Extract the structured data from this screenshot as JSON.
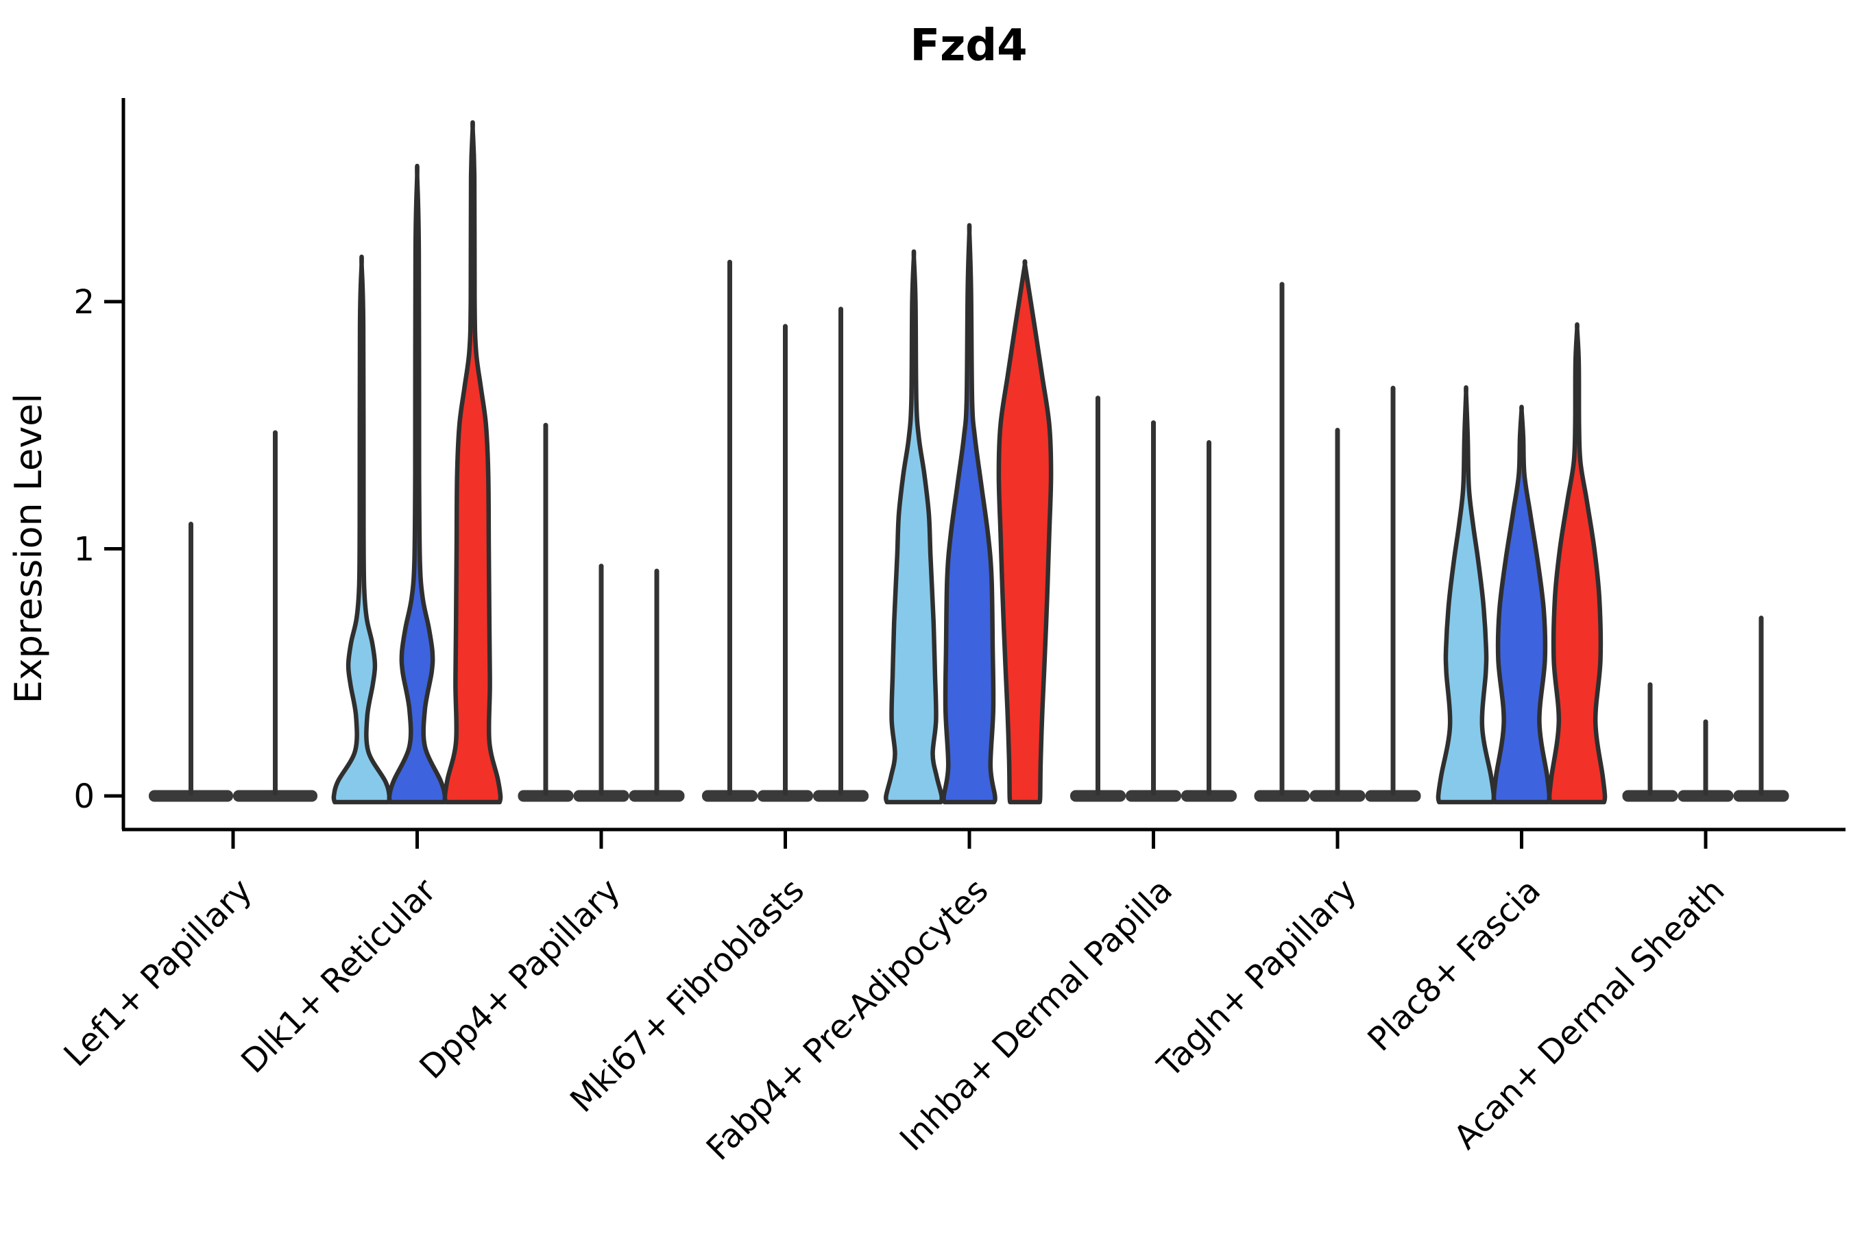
{
  "title": "Fzd4",
  "y_axis": {
    "label": "Expression Level",
    "tick_labels": [
      "0",
      "1",
      "2"
    ]
  },
  "colors": {
    "background": "#ffffff",
    "axis": "#000000",
    "violin_edge": "#2f2f2f",
    "spike": "#333333",
    "pancake": "#3a3a3a",
    "light_blue": "#87C9EA",
    "dark_blue": "#3D63DE",
    "red": "#F23128"
  },
  "chart_data": {
    "type": "violin",
    "title": "Fzd4",
    "xlabel": "",
    "ylabel": "Expression Level",
    "ytick_values": [
      0,
      1,
      2
    ],
    "ylim": [
      -0.15,
      2.82
    ],
    "grid": false,
    "legend": "none",
    "series_palette": [
      "#87C9EA",
      "#3D63DE",
      "#F23128"
    ],
    "categories": [
      "Lef1+ Papillary",
      "Dlk1+ Reticular",
      "Dpp4+ Papillary",
      "Mki67+ Fibroblasts",
      "Fabp4+ Pre-Adipocytes",
      "Inhba+ Dermal Papilla",
      "Tagln+ Papillary",
      "Plac8+ Fascia",
      "Acan+ Dermal Sheath"
    ],
    "groups": [
      {
        "category": "Lef1+ Papillary",
        "violins": [
          {
            "shape": "spike",
            "fill": null,
            "max": 1.1
          },
          {
            "shape": "spike",
            "fill": null,
            "max": 1.47
          }
        ]
      },
      {
        "category": "Dlk1+ Reticular",
        "violins": [
          {
            "shape": "body",
            "fill": "#87C9EA",
            "max": 2.15,
            "profile": [
              [
                0,
                1.0
              ],
              [
                0.06,
                0.85
              ],
              [
                0.18,
                0.24
              ],
              [
                0.32,
                0.2
              ],
              [
                0.45,
                0.4
              ],
              [
                0.53,
                0.48
              ],
              [
                0.62,
                0.38
              ],
              [
                0.72,
                0.18
              ],
              [
                0.85,
                0.09
              ],
              [
                1.1,
                0.07
              ],
              [
                1.9,
                0.06
              ],
              [
                2.15,
                0.0
              ]
            ]
          },
          {
            "shape": "body",
            "fill": "#3D63DE",
            "max": 2.51,
            "profile": [
              [
                0,
                1.0
              ],
              [
                0.06,
                0.85
              ],
              [
                0.2,
                0.28
              ],
              [
                0.35,
                0.28
              ],
              [
                0.5,
                0.52
              ],
              [
                0.58,
                0.55
              ],
              [
                0.68,
                0.42
              ],
              [
                0.8,
                0.2
              ],
              [
                0.95,
                0.1
              ],
              [
                1.3,
                0.07
              ],
              [
                2.2,
                0.06
              ],
              [
                2.51,
                0.0
              ]
            ]
          },
          {
            "shape": "body",
            "fill": "#F23128",
            "max": 2.7,
            "profile": [
              [
                0,
                1.0
              ],
              [
                0.07,
                0.9
              ],
              [
                0.22,
                0.6
              ],
              [
                0.45,
                0.62
              ],
              [
                0.7,
                0.6
              ],
              [
                1.0,
                0.58
              ],
              [
                1.3,
                0.56
              ],
              [
                1.5,
                0.48
              ],
              [
                1.65,
                0.3
              ],
              [
                1.8,
                0.12
              ],
              [
                2.0,
                0.07
              ],
              [
                2.5,
                0.06
              ],
              [
                2.7,
                0.0
              ]
            ]
          }
        ]
      },
      {
        "category": "Dpp4+ Papillary",
        "violins": [
          {
            "shape": "spike",
            "fill": null,
            "max": 1.5
          },
          {
            "shape": "spike",
            "fill": null,
            "max": 0.93
          },
          {
            "shape": "spike",
            "fill": null,
            "max": 0.91
          }
        ]
      },
      {
        "category": "Mki67+ Fibroblasts",
        "violins": [
          {
            "shape": "spike",
            "fill": null,
            "max": 2.16
          },
          {
            "shape": "spike",
            "fill": null,
            "max": 1.9
          },
          {
            "shape": "spike",
            "fill": null,
            "max": 1.97
          }
        ]
      },
      {
        "category": "Fabp4+ Pre-Adipocytes",
        "violins": [
          {
            "shape": "body",
            "fill": "#87C9EA",
            "max": 2.18,
            "profile": [
              [
                0,
                1.0
              ],
              [
                0.08,
                0.82
              ],
              [
                0.17,
                0.68
              ],
              [
                0.31,
                0.8
              ],
              [
                0.5,
                0.76
              ],
              [
                0.7,
                0.71
              ],
              [
                0.97,
                0.6
              ],
              [
                1.14,
                0.54
              ],
              [
                1.3,
                0.38
              ],
              [
                1.45,
                0.18
              ],
              [
                1.6,
                0.09
              ],
              [
                2.0,
                0.06
              ],
              [
                2.18,
                0.0
              ]
            ]
          },
          {
            "shape": "body",
            "fill": "#3D63DE",
            "max": 2.28,
            "profile": [
              [
                0,
                0.92
              ],
              [
                0.12,
                0.76
              ],
              [
                0.35,
                0.86
              ],
              [
                0.6,
                0.84
              ],
              [
                0.88,
                0.8
              ],
              [
                1.05,
                0.68
              ],
              [
                1.25,
                0.44
              ],
              [
                1.45,
                0.2
              ],
              [
                1.6,
                0.1
              ],
              [
                2.05,
                0.06
              ],
              [
                2.28,
                0.0
              ]
            ]
          },
          {
            "shape": "body",
            "fill": "#F23128",
            "max": 2.15,
            "profile": [
              [
                0,
                0.55
              ],
              [
                0.15,
                0.57
              ],
              [
                0.35,
                0.63
              ],
              [
                0.52,
                0.7
              ],
              [
                0.8,
                0.8
              ],
              [
                1.07,
                0.88
              ],
              [
                1.3,
                0.94
              ],
              [
                1.5,
                0.88
              ],
              [
                1.7,
                0.62
              ],
              [
                1.9,
                0.35
              ],
              [
                2.05,
                0.14
              ],
              [
                2.15,
                0.0
              ]
            ]
          }
        ]
      },
      {
        "category": "Inhba+ Dermal Papilla",
        "violins": [
          {
            "shape": "spike",
            "fill": null,
            "max": 1.61
          },
          {
            "shape": "spike",
            "fill": null,
            "max": 1.51
          },
          {
            "shape": "spike",
            "fill": null,
            "max": 1.43
          }
        ]
      },
      {
        "category": "Tagln+ Papillary",
        "violins": [
          {
            "shape": "spike",
            "fill": null,
            "max": 2.07
          },
          {
            "shape": "spike",
            "fill": null,
            "max": 1.48
          },
          {
            "shape": "spike",
            "fill": null,
            "max": 1.65
          }
        ]
      },
      {
        "category": "Plac8+ Fascia",
        "violins": [
          {
            "shape": "body",
            "fill": "#87C9EA",
            "max": 1.63,
            "profile": [
              [
                0,
                1.0
              ],
              [
                0.08,
                0.9
              ],
              [
                0.28,
                0.58
              ],
              [
                0.5,
                0.71
              ],
              [
                0.6,
                0.72
              ],
              [
                0.78,
                0.62
              ],
              [
                0.95,
                0.44
              ],
              [
                1.1,
                0.25
              ],
              [
                1.25,
                0.1
              ],
              [
                1.45,
                0.06
              ],
              [
                1.63,
                0.0
              ]
            ]
          },
          {
            "shape": "body",
            "fill": "#3D63DE",
            "max": 1.56,
            "profile": [
              [
                0,
                1.0
              ],
              [
                0.08,
                0.92
              ],
              [
                0.3,
                0.64
              ],
              [
                0.55,
                0.84
              ],
              [
                0.75,
                0.8
              ],
              [
                0.95,
                0.58
              ],
              [
                1.15,
                0.3
              ],
              [
                1.3,
                0.1
              ],
              [
                1.45,
                0.06
              ],
              [
                1.56,
                0.0
              ]
            ]
          },
          {
            "shape": "body",
            "fill": "#F23128",
            "max": 1.89,
            "profile": [
              [
                0,
                1.0
              ],
              [
                0.08,
                0.92
              ],
              [
                0.3,
                0.66
              ],
              [
                0.55,
                0.84
              ],
              [
                0.8,
                0.8
              ],
              [
                1.0,
                0.62
              ],
              [
                1.2,
                0.34
              ],
              [
                1.35,
                0.12
              ],
              [
                1.5,
                0.07
              ],
              [
                1.75,
                0.06
              ],
              [
                1.89,
                0.0
              ]
            ]
          }
        ]
      },
      {
        "category": "Acan+ Dermal Sheath",
        "violins": [
          {
            "shape": "spike",
            "fill": null,
            "max": 0.45
          },
          {
            "shape": "spike",
            "fill": null,
            "max": 0.3
          },
          {
            "shape": "spike",
            "fill": null,
            "max": 0.72
          }
        ]
      }
    ]
  }
}
